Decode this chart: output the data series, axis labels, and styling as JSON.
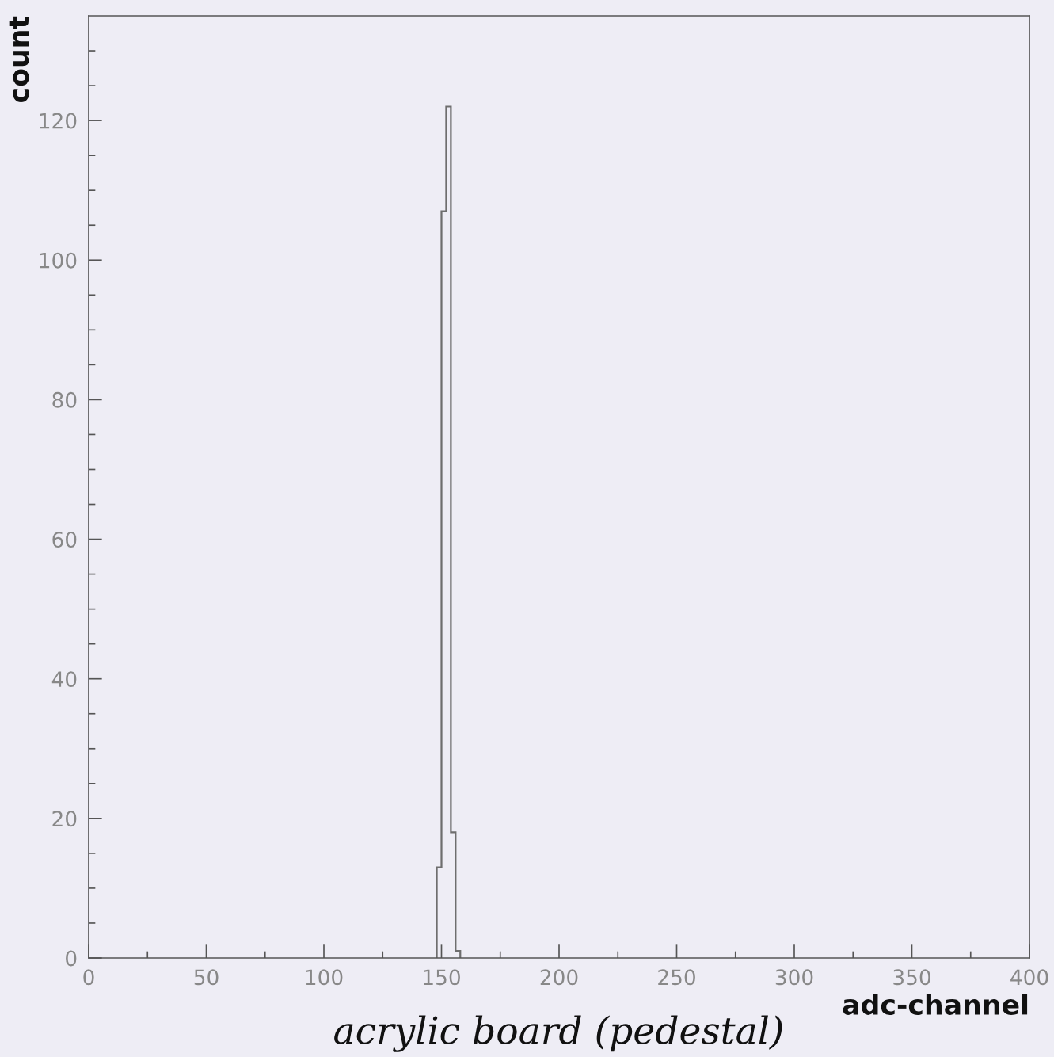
{
  "chart_data": {
    "type": "histogram",
    "xlabel": "adc-channel",
    "ylabel": "count",
    "annotations": [
      "acrylic board (pedestal)"
    ],
    "bins": [
      148,
      150,
      152,
      154,
      156,
      158
    ],
    "values": [
      13,
      107,
      122,
      18,
      1
    ],
    "color": "#6e6e6e",
    "xlim": [
      0,
      400
    ],
    "ylim": [
      0,
      135
    ],
    "xticks": [
      0,
      {
        "value": 25,
        "label": null
      },
      50,
      {
        "value": 75,
        "label": null
      },
      100,
      {
        "value": 125,
        "label": null
      },
      150,
      {
        "value": 175,
        "label": null
      },
      200,
      {
        "value": 225,
        "label": null
      },
      250,
      {
        "value": 275,
        "label": null
      },
      300,
      {
        "value": 325,
        "label": null
      },
      350,
      {
        "value": 375,
        "label": null
      },
      400
    ],
    "yticks": [
      0,
      {
        "value": 5,
        "label": null
      },
      {
        "value": 10,
        "label": null
      },
      {
        "value": 15,
        "label": null
      },
      20,
      {
        "value": 25,
        "label": null
      },
      {
        "value": 30,
        "label": null
      },
      {
        "value": 35,
        "label": null
      },
      40,
      {
        "value": 45,
        "label": null
      },
      {
        "value": 50,
        "label": null
      },
      {
        "value": 55,
        "label": null
      },
      60,
      {
        "value": 65,
        "label": null
      },
      {
        "value": 70,
        "label": null
      },
      {
        "value": 75,
        "label": null
      },
      80,
      {
        "value": 85,
        "label": null
      },
      {
        "value": 90,
        "label": null
      },
      {
        "value": 95,
        "label": null
      },
      100,
      {
        "value": 105,
        "label": null
      },
      {
        "value": 110,
        "label": null
      },
      {
        "value": 115,
        "label": null
      },
      120,
      {
        "value": 125,
        "label": null
      },
      {
        "value": 130,
        "label": null
      }
    ],
    "grid": false
  }
}
